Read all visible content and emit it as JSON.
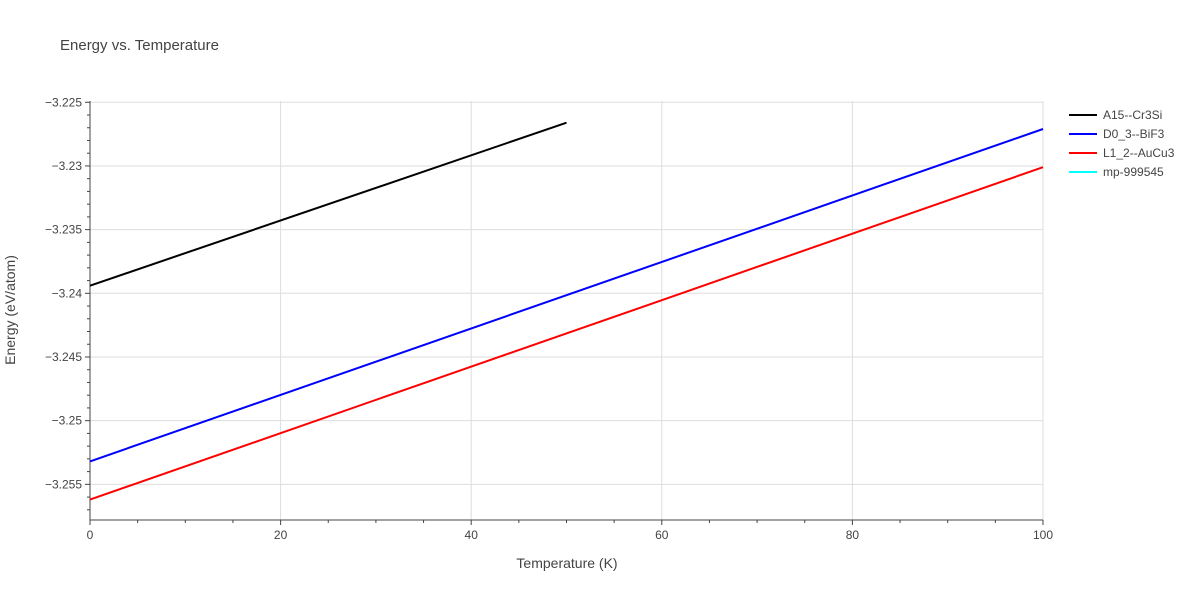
{
  "chart_data": {
    "type": "line",
    "title": "Energy vs. Temperature",
    "xlabel": "Temperature (K)",
    "ylabel": "Energy (eV/atom)",
    "xlim": [
      0,
      100
    ],
    "ylim": [
      -3.2578,
      -3.2249
    ],
    "x_ticks": [
      0,
      20,
      40,
      60,
      80,
      100
    ],
    "x_tick_labels": [
      "0",
      "20",
      "40",
      "60",
      "80",
      "100"
    ],
    "y_ticks": [
      -3.255,
      -3.25,
      -3.245,
      -3.24,
      -3.235,
      -3.23,
      -3.225
    ],
    "y_tick_labels": [
      "−3.255",
      "−3.25",
      "−3.245",
      "−3.24",
      "−3.235",
      "−3.23",
      "−3.225"
    ],
    "grid": true,
    "legend_position": "top-right",
    "series": [
      {
        "name": "A15--Cr3Si",
        "color": "#000000",
        "x": [
          0,
          50
        ],
        "y": [
          -3.2394,
          -3.2266
        ]
      },
      {
        "name": "D0_3--BiF3",
        "color": "#0000ff",
        "x": [
          0,
          100
        ],
        "y": [
          -3.2532,
          -3.2271
        ]
      },
      {
        "name": "L1_2--AuCu3",
        "color": "#ff0000",
        "x": [
          0,
          100
        ],
        "y": [
          -3.2562,
          -3.2301
        ]
      },
      {
        "name": "mp-999545",
        "color": "#00ffff",
        "x": [],
        "y": []
      }
    ]
  }
}
